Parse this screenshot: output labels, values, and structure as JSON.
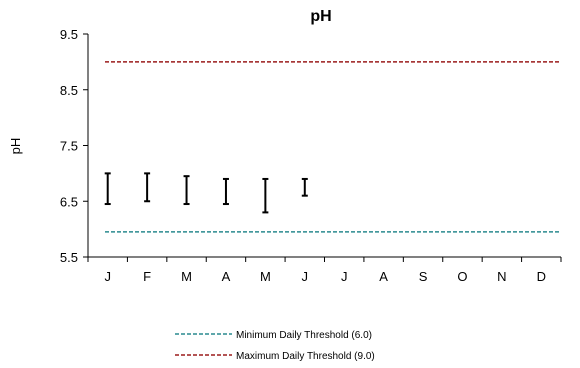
{
  "chart_data": {
    "type": "errorbar",
    "title": "pH",
    "ylabel": "pH",
    "xlabel": "",
    "categories": [
      "J",
      "F",
      "M",
      "A",
      "M",
      "J",
      "J",
      "A",
      "S",
      "O",
      "N",
      "D"
    ],
    "ylim": [
      5.5,
      9.5
    ],
    "yticks": [
      "5.5",
      "6.5",
      "7.5",
      "8.5",
      "9.5"
    ],
    "ytick_values": [
      5.5,
      6.5,
      7.5,
      8.5,
      9.5
    ],
    "ranges": [
      {
        "category": "J",
        "min": 6.45,
        "max": 7.0
      },
      {
        "category": "F",
        "min": 6.5,
        "max": 7.0
      },
      {
        "category": "M",
        "min": 6.45,
        "max": 6.95
      },
      {
        "category": "A",
        "min": 6.45,
        "max": 6.9
      },
      {
        "category": "M",
        "min": 6.3,
        "max": 6.9
      },
      {
        "category": "J",
        "min": 6.6,
        "max": 6.9
      }
    ],
    "thresholds": [
      {
        "name": "Minimum Daily Threshold (6.0)",
        "value": 5.95,
        "color": "#2a8a8f"
      },
      {
        "name": "Maximum Daily Threshold (9.0)",
        "value": 9.0,
        "color": "#9b1b1b"
      }
    ],
    "grid": false,
    "legend_position": "bottom-center"
  },
  "legend": {
    "min_label": "Minimum Daily Threshold (6.0)",
    "max_label": "Maximum Daily Threshold (9.0)"
  }
}
